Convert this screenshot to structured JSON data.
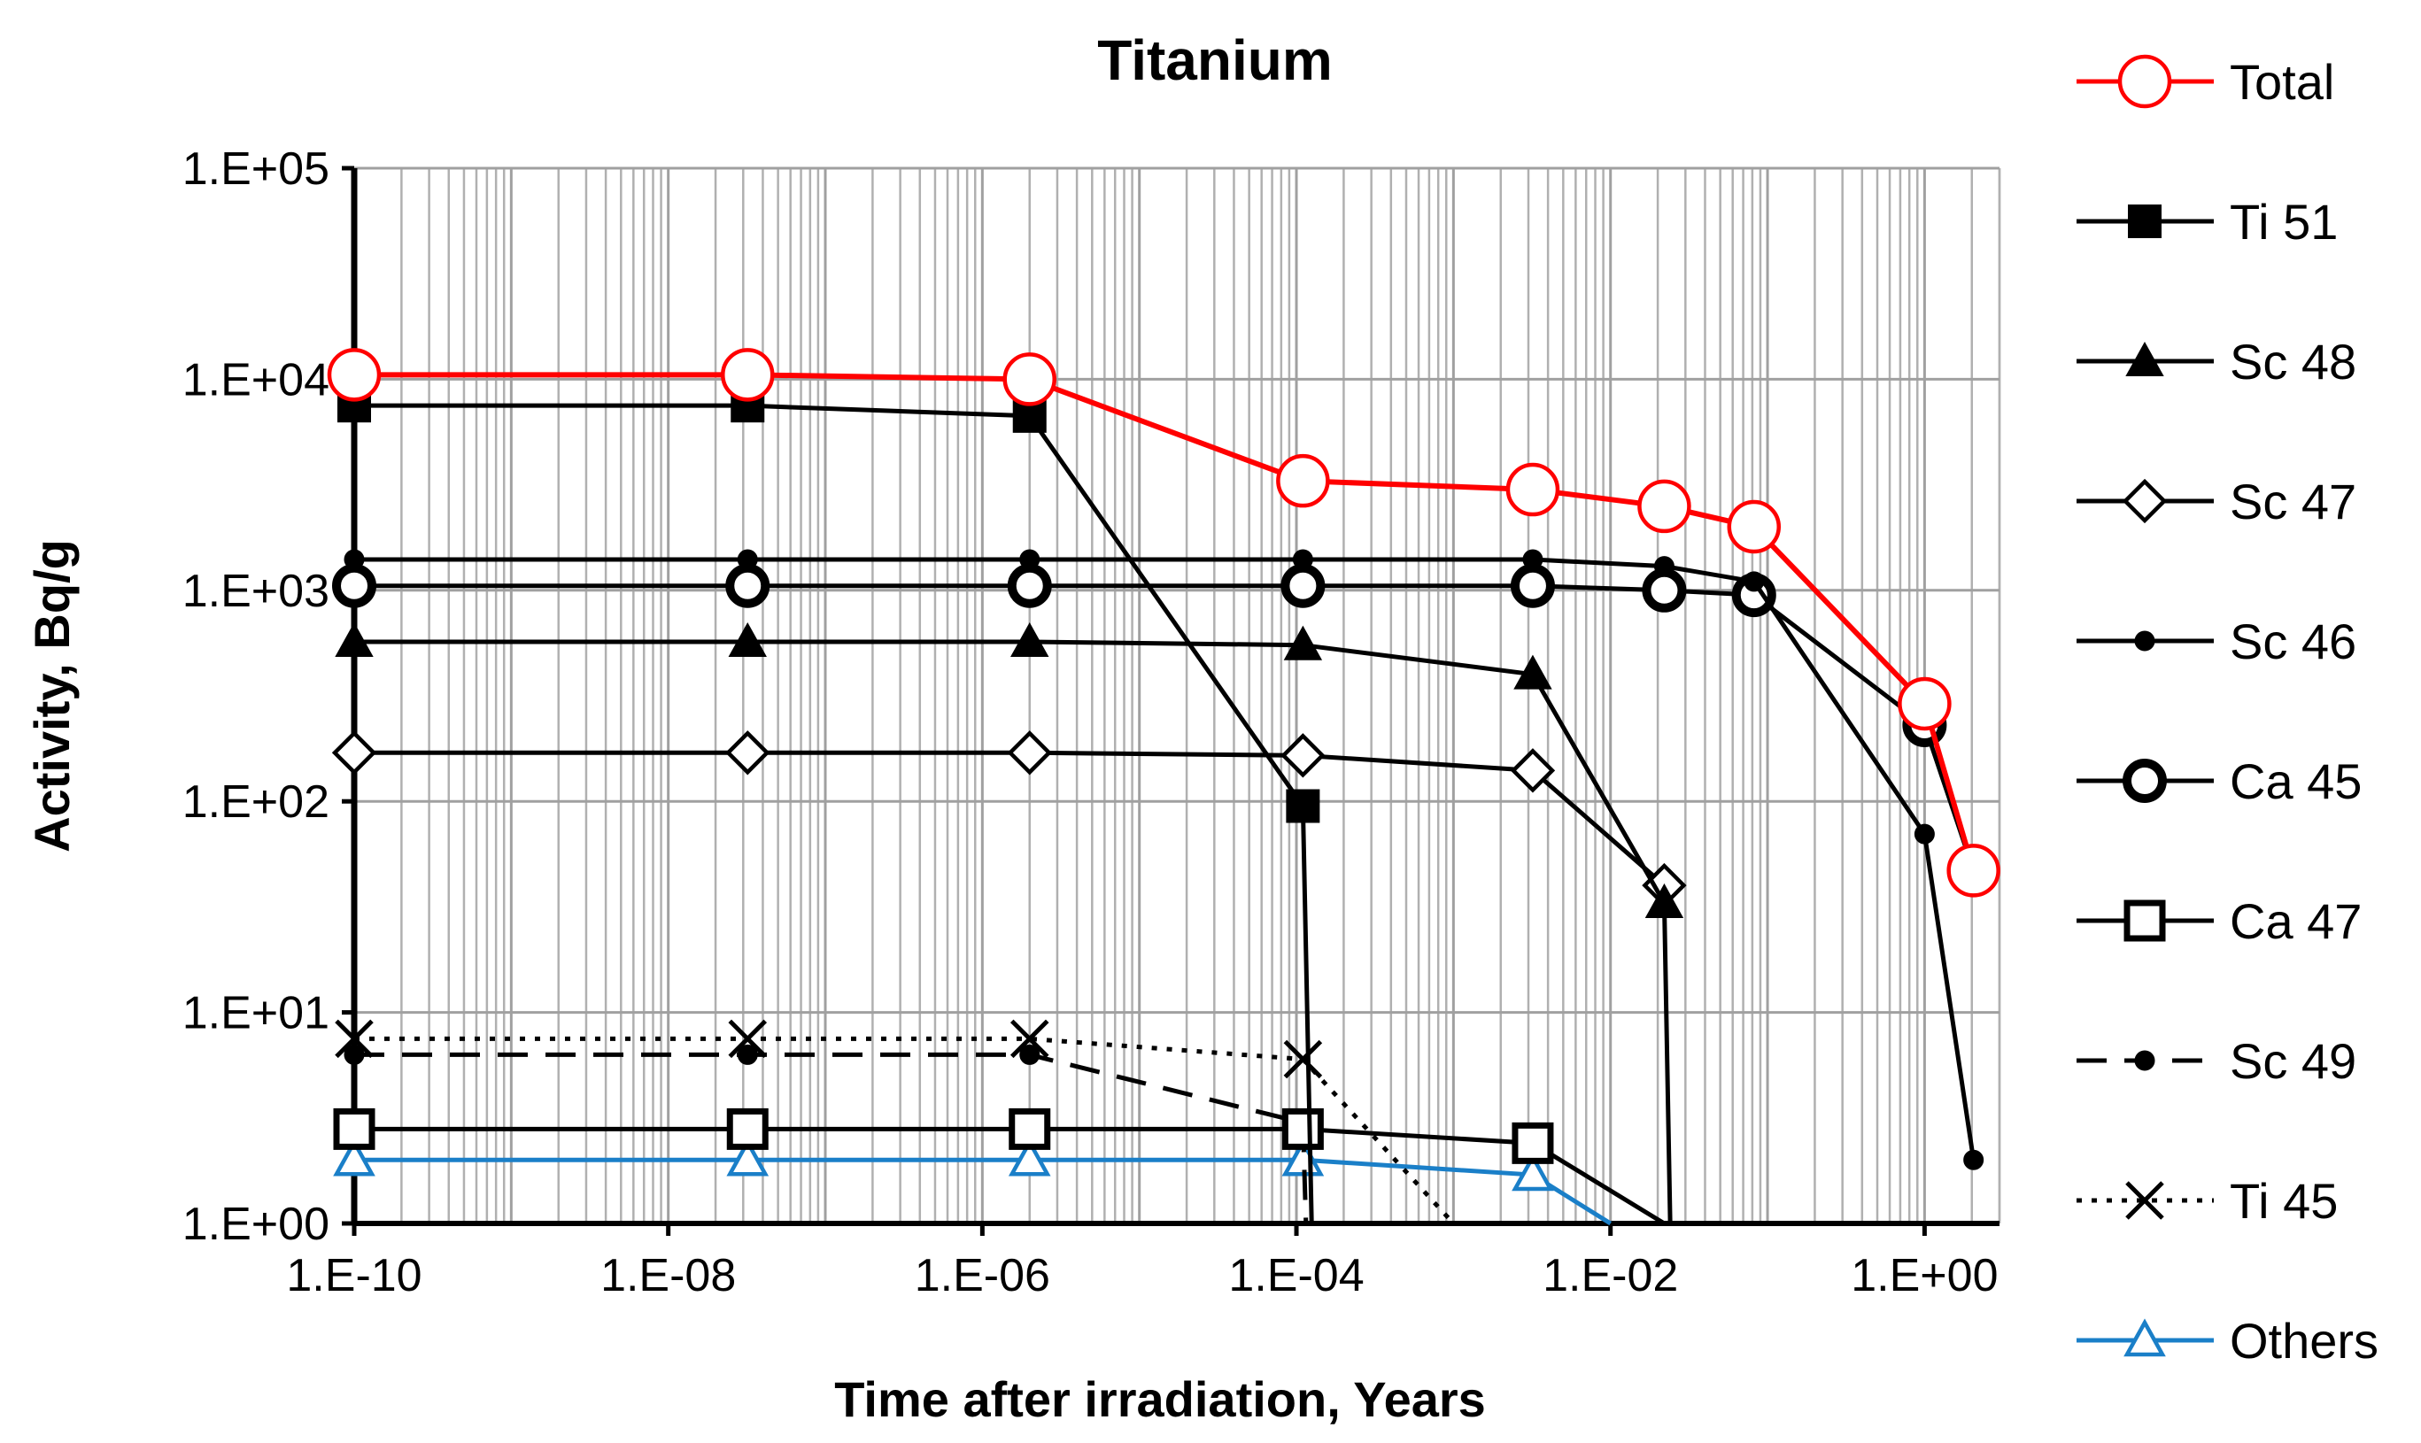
{
  "chart_data": {
    "type": "line",
    "title": "Titanium",
    "xlabel": "Time after irradiation, Years",
    "ylabel": "Activity, Bq/g",
    "xscale": "log",
    "yscale": "log",
    "xlim": [
      1e-10,
      3.0
    ],
    "ylim": [
      1,
      100000
    ],
    "xticks": [
      1e-10,
      1e-08,
      1e-06,
      0.0001,
      0.01,
      1
    ],
    "xtick_labels": [
      "1.E-10",
      "1.E-08",
      "1.E-06",
      "1.E-04",
      "1.E-02",
      "1.E+00"
    ],
    "yticks": [
      1,
      10,
      100,
      1000,
      10000,
      100000
    ],
    "ytick_labels": [
      "1.E+00",
      "1.E+01",
      "1.E+02",
      "1.E+03",
      "1.E+04",
      "1.E+05"
    ],
    "grid": true,
    "legend_position": "right",
    "series": [
      {
        "name": "Total",
        "color": "#ff0000",
        "dash": "solid",
        "marker": "circle-open",
        "marker_size": 28,
        "x": [
          1e-10,
          3.2e-08,
          2e-06,
          0.00011,
          0.0032,
          0.022,
          0.082,
          1.0,
          2.05
        ],
        "y": [
          10500,
          10500,
          10000,
          3300,
          3000,
          2500,
          2000,
          290,
          47
        ]
      },
      {
        "name": "Ti 51",
        "color": "#000000",
        "dash": "solid",
        "marker": "square-filled",
        "marker_size": 18,
        "x": [
          1e-10,
          3.2e-08,
          2e-06,
          0.00011,
          0.000125
        ],
        "y": [
          7500,
          7500,
          6700,
          95,
          1
        ]
      },
      {
        "name": "Sc 48",
        "color": "#000000",
        "dash": "solid",
        "marker": "triangle-filled",
        "marker_size": 20,
        "x": [
          1e-10,
          3.2e-08,
          2e-06,
          0.00011,
          0.0032,
          0.022,
          0.024
        ],
        "y": [
          570,
          570,
          570,
          550,
          400,
          33,
          1
        ]
      },
      {
        "name": "Sc 47",
        "color": "#000000",
        "dash": "solid",
        "marker": "diamond-open",
        "marker_size": 22,
        "x": [
          1e-10,
          3.2e-08,
          2e-06,
          0.00011,
          0.0032,
          0.022
        ],
        "y": [
          170,
          170,
          170,
          165,
          140,
          40
        ]
      },
      {
        "name": "Sc 46",
        "color": "#000000",
        "dash": "solid",
        "marker": "dot-filled",
        "marker_size": 11,
        "x": [
          1e-10,
          3.2e-08,
          2e-06,
          0.00011,
          0.0032,
          0.022,
          0.082,
          1.0,
          2.05
        ],
        "y": [
          1400,
          1400,
          1400,
          1400,
          1400,
          1300,
          1100,
          70,
          2
        ]
      },
      {
        "name": "Ca 45",
        "color": "#000000",
        "dash": "solid",
        "marker": "circle-open-bold",
        "marker_size": 20,
        "x": [
          1e-10,
          3.2e-08,
          2e-06,
          0.00011,
          0.0032,
          0.022,
          0.082,
          1.0,
          2.05
        ],
        "y": [
          1050,
          1050,
          1050,
          1050,
          1050,
          1000,
          950,
          230,
          47
        ]
      },
      {
        "name": "Ca 47",
        "color": "#000000",
        "dash": "solid",
        "marker": "square-open",
        "marker_size": 20,
        "x": [
          1e-10,
          3.2e-08,
          2e-06,
          0.00011,
          0.0032,
          0.022
        ],
        "y": [
          2.8,
          2.8,
          2.8,
          2.8,
          2.4,
          1.0
        ]
      },
      {
        "name": "Sc 49",
        "color": "#000000",
        "dash": "dash",
        "marker": "dot-filled",
        "marker_size": 11,
        "x": [
          1e-10,
          3.2e-08,
          2e-06,
          0.00011,
          0.000115
        ],
        "y": [
          6.3,
          6.3,
          6.3,
          3.0,
          1.0
        ]
      },
      {
        "name": "Ti 45",
        "color": "#000000",
        "dash": "dot",
        "marker": "x",
        "marker_size": 20,
        "x": [
          1e-10,
          3.2e-08,
          2e-06,
          0.00011,
          0.001
        ],
        "y": [
          7.5,
          7.5,
          7.5,
          6.0,
          1.0
        ]
      },
      {
        "name": "Others",
        "color": "#1a7fc8",
        "dash": "solid",
        "marker": "triangle-open",
        "marker_size": 20,
        "x": [
          1e-10,
          3.2e-08,
          2e-06,
          0.00011,
          0.0032,
          0.01
        ],
        "y": [
          2.0,
          2.0,
          2.0,
          2.0,
          1.7,
          1.0
        ]
      }
    ]
  }
}
